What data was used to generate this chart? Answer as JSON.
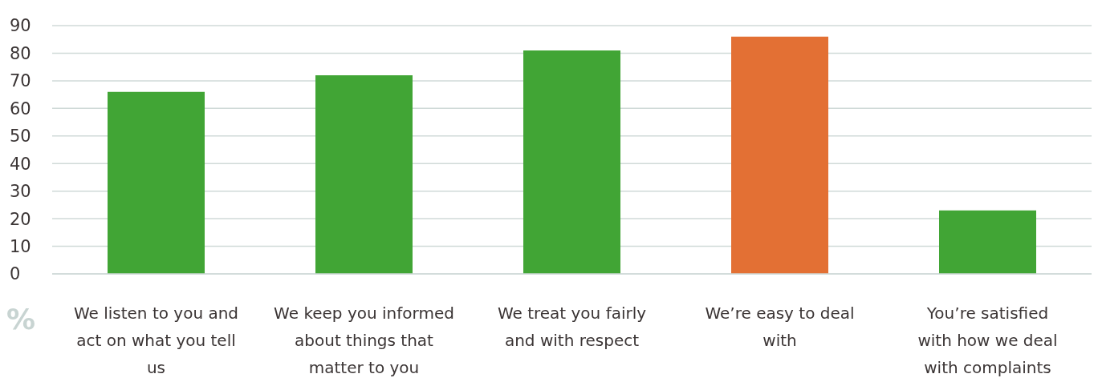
{
  "chart_data": {
    "type": "bar",
    "ylabel": "%",
    "categories": [
      "We listen to you and act on what you tell us",
      "We keep you informed about things that matter to you",
      "We treat you fairly and with respect",
      "We’re easy to deal with",
      "You’re satisfied with how we deal with complaints"
    ],
    "values": [
      66,
      72,
      81,
      86,
      23
    ],
    "colors": [
      "#41a535",
      "#41a535",
      "#41a535",
      "#e37034",
      "#41a535"
    ],
    "ylim": [
      0,
      90
    ],
    "yticks": [
      0,
      10,
      20,
      30,
      40,
      50,
      60,
      70,
      80,
      90
    ],
    "grid": "y"
  }
}
